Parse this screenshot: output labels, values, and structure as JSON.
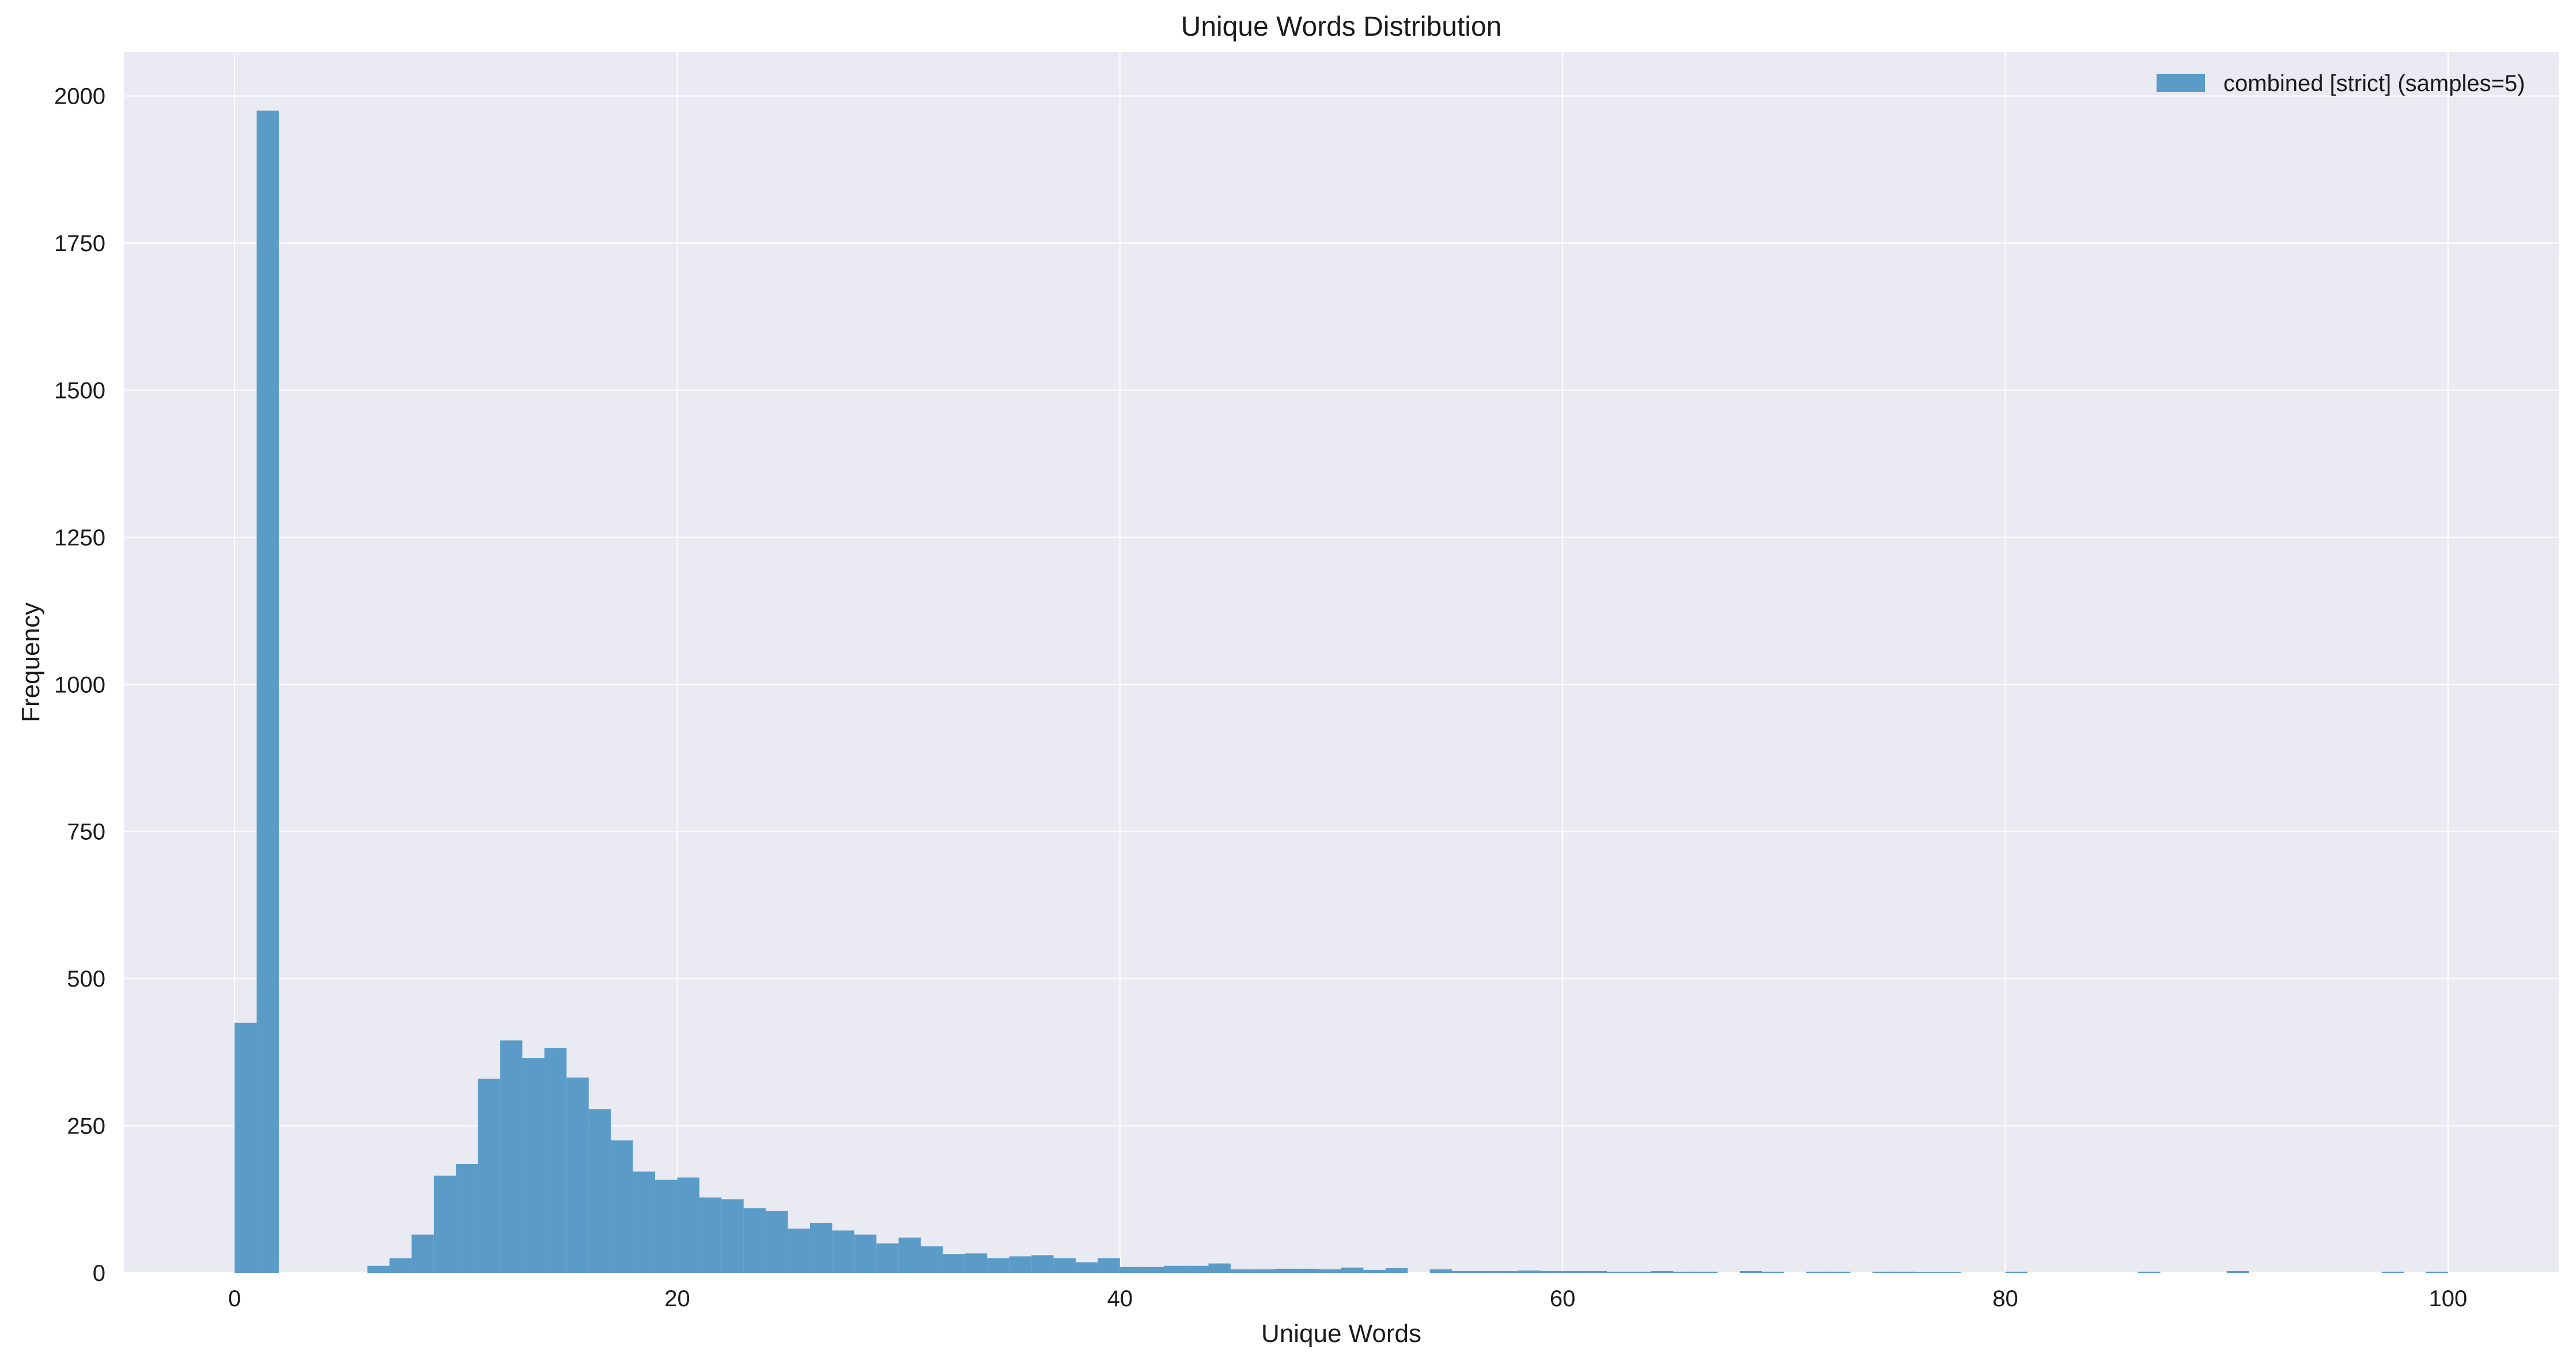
{
  "chart_data": {
    "type": "bar",
    "title": "Unique Words Distribution",
    "xlabel": "Unique Words",
    "ylabel": "Frequency",
    "xlim": [
      -5,
      105
    ],
    "ylim": [
      0,
      2075
    ],
    "xticks": [
      0,
      20,
      40,
      60,
      80,
      100
    ],
    "yticks": [
      0,
      250,
      500,
      750,
      1000,
      1250,
      1500,
      1750,
      2000
    ],
    "grid": true,
    "legend_position": "top-right",
    "colors": {
      "plot_background": "#EAEAF2",
      "grid": "#FFFFFF",
      "bar": "#5B9BC8"
    },
    "series": [
      {
        "name": "combined [strict] (samples=5)",
        "bin_width": 1,
        "bin_starts": [
          0,
          1,
          2,
          3,
          4,
          5,
          6,
          7,
          8,
          9,
          10,
          11,
          12,
          13,
          14,
          15,
          16,
          17,
          18,
          19,
          20,
          21,
          22,
          23,
          24,
          25,
          26,
          27,
          28,
          29,
          30,
          31,
          32,
          33,
          34,
          35,
          36,
          37,
          38,
          39,
          40,
          41,
          42,
          43,
          44,
          45,
          46,
          47,
          48,
          49,
          50,
          51,
          52,
          53,
          54,
          55,
          56,
          57,
          58,
          59,
          60,
          61,
          62,
          63,
          64,
          65,
          66,
          67,
          68,
          69,
          70,
          71,
          72,
          73,
          74,
          75,
          76,
          77,
          78,
          79,
          80,
          81,
          82,
          83,
          84,
          85,
          86,
          87,
          88,
          89,
          90,
          91,
          92,
          93,
          94,
          95,
          96,
          97,
          98,
          99
        ],
        "values": [
          425,
          1975,
          0,
          0,
          0,
          0,
          12,
          25,
          65,
          165,
          185,
          330,
          395,
          365,
          382,
          332,
          278,
          225,
          172,
          158,
          162,
          128,
          125,
          110,
          105,
          75,
          85,
          72,
          65,
          50,
          60,
          45,
          32,
          33,
          25,
          28,
          30,
          25,
          18,
          25,
          10,
          10,
          12,
          12,
          16,
          6,
          6,
          7,
          7,
          6,
          9,
          5,
          8,
          0,
          6,
          3,
          3,
          3,
          4,
          3,
          3,
          3,
          2,
          2,
          3,
          2,
          2,
          0,
          3,
          2,
          0,
          2,
          2,
          0,
          2,
          2,
          1,
          1,
          0,
          0,
          2,
          0,
          0,
          0,
          0,
          0,
          2,
          0,
          0,
          0,
          3,
          0,
          0,
          0,
          0,
          0,
          0,
          2,
          0,
          2
        ]
      }
    ]
  }
}
